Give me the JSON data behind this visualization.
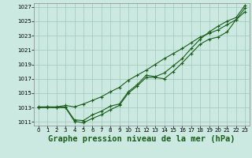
{
  "bg_color": "#cbe9e0",
  "grid_color": "#a0c8b8",
  "line_color": "#1a5c1a",
  "marker_color": "#1a5c1a",
  "xlabel": "Graphe pression niveau de la mer (hPa)",
  "xlabel_fontsize": 7.5,
  "ylim": [
    1010.5,
    1027.5
  ],
  "xlim": [
    -0.5,
    23.5
  ],
  "yticks": [
    1011,
    1013,
    1015,
    1017,
    1019,
    1021,
    1023,
    1025,
    1027
  ],
  "xticks": [
    0,
    1,
    2,
    3,
    4,
    5,
    6,
    7,
    8,
    9,
    10,
    11,
    12,
    13,
    14,
    15,
    16,
    17,
    18,
    19,
    20,
    21,
    22,
    23
  ],
  "line1_x": [
    0,
    1,
    2,
    3,
    4,
    5,
    6,
    7,
    8,
    9,
    10,
    11,
    12,
    13,
    14,
    15,
    16,
    17,
    18,
    19,
    20,
    21,
    22,
    23
  ],
  "line1_y": [
    1013.1,
    1013.1,
    1013.1,
    1013.3,
    1013.1,
    1013.5,
    1014.0,
    1014.5,
    1015.2,
    1015.8,
    1016.8,
    1017.5,
    1018.2,
    1019.0,
    1019.8,
    1020.5,
    1021.2,
    1022.0,
    1022.8,
    1023.3,
    1023.8,
    1024.5,
    1025.2,
    1026.8
  ],
  "line2_x": [
    0,
    1,
    2,
    3,
    4,
    5,
    6,
    7,
    8,
    9,
    10,
    11,
    12,
    13,
    14,
    15,
    16,
    17,
    18,
    19,
    20,
    21,
    22,
    23
  ],
  "line2_y": [
    1013.0,
    1013.1,
    1013.0,
    1013.0,
    1011.1,
    1010.9,
    1011.5,
    1012.0,
    1012.7,
    1013.3,
    1015.0,
    1016.0,
    1017.2,
    1017.2,
    1017.0,
    1018.0,
    1019.2,
    1020.5,
    1021.8,
    1022.5,
    1022.8,
    1023.5,
    1025.2,
    1026.3
  ],
  "line3_x": [
    0,
    1,
    2,
    3,
    4,
    5,
    6,
    7,
    8,
    9,
    10,
    11,
    12,
    13,
    14,
    15,
    16,
    17,
    18,
    19,
    20,
    21,
    22,
    23
  ],
  "line3_y": [
    1013.0,
    1013.0,
    1013.0,
    1013.1,
    1011.3,
    1011.2,
    1012.0,
    1012.5,
    1013.2,
    1013.5,
    1015.2,
    1016.2,
    1017.5,
    1017.3,
    1017.8,
    1018.8,
    1019.8,
    1021.2,
    1022.5,
    1023.5,
    1024.3,
    1025.0,
    1025.5,
    1027.2
  ]
}
